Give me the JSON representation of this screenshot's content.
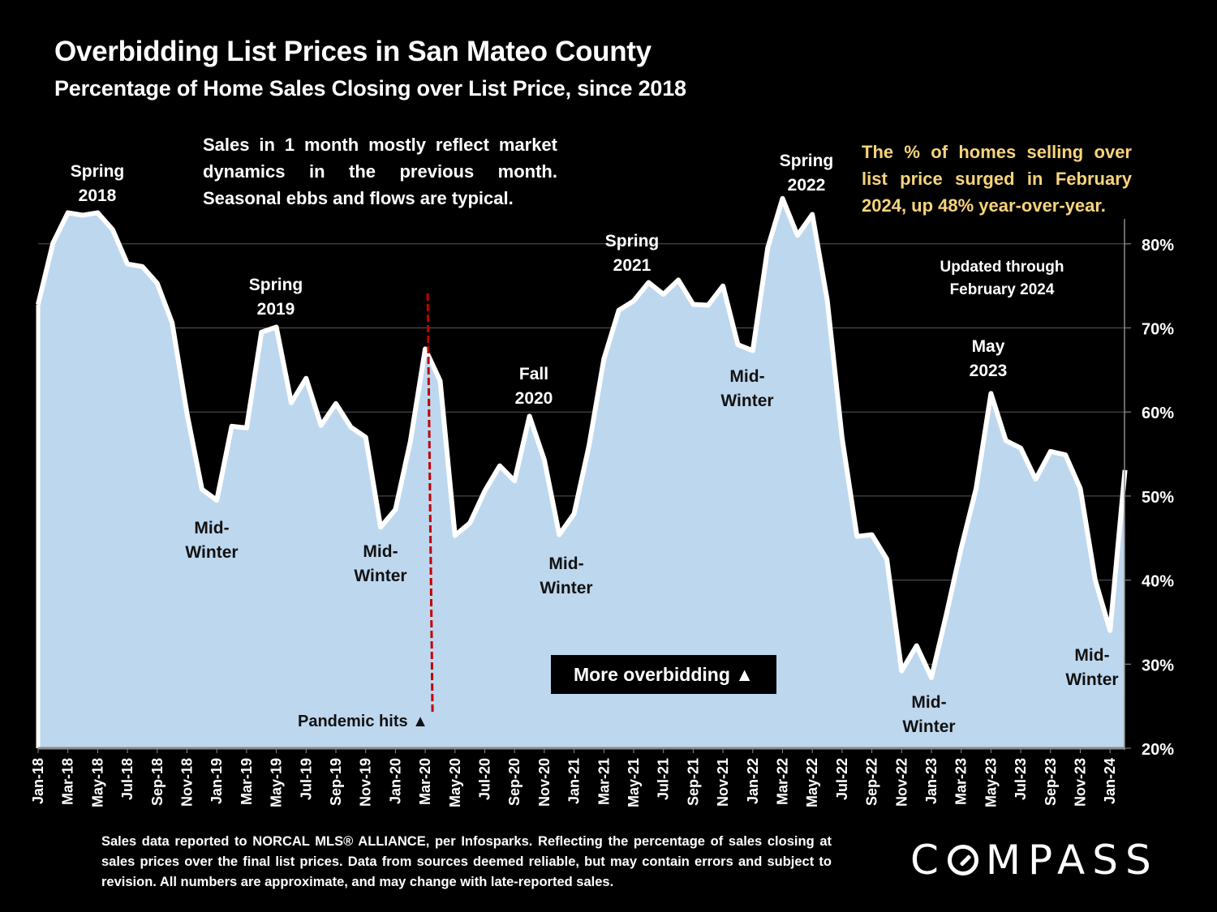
{
  "header": {
    "title": "Overbidding List Prices in San Mateo County",
    "subtitle": "Percentage of Home Sales Closing over List Price, since 2018"
  },
  "notes": {
    "left": "Sales in 1 month mostly reflect market dynamics in the previous month. Seasonal ebbs and flows are typical.",
    "right": "The % of homes selling over list price surged in February 2024, up 48% year-over-year.",
    "updated_line1": "Updated through",
    "updated_line2": "February 2024"
  },
  "annotations": {
    "spring2018": [
      "Spring",
      "2018"
    ],
    "spring2019": [
      "Spring",
      "2019"
    ],
    "fall2020": [
      "Fall",
      "2020"
    ],
    "spring2021": [
      "Spring",
      "2021"
    ],
    "spring2022": [
      "Spring",
      "2022"
    ],
    "may2023": [
      "May",
      "2023"
    ],
    "midwinter1": [
      "Mid-",
      "Winter"
    ],
    "midwinter2": [
      "Mid-",
      "Winter"
    ],
    "midwinter3": [
      "Mid-",
      "Winter"
    ],
    "midwinter4": [
      "Mid-",
      "Winter"
    ],
    "midwinter5": [
      "Mid-",
      "Winter"
    ],
    "midwinter6": [
      "Mid-",
      "Winter"
    ],
    "pandemic": "Pandemic hits ▲",
    "more_overbidding": "More overbidding ▲"
  },
  "footnote": "Sales data reported to NORCAL MLS® ALLIANCE, per Infosparks. Reflecting the percentage of sales closing at sales prices over the final list prices. Data from sources deemed reliable, but may contain errors and subject to revision. All numbers are approximate, and may change with late-reported sales.",
  "logo": {
    "text_before": "C",
    "text_after": "MPASS",
    "icon": "compass-o-icon"
  },
  "colors": {
    "area_fill": "#bdd7ee",
    "line": "#ffffff",
    "gridline": "#595959",
    "pandemic_line": "#c00000",
    "highlight_text": "#f9d47c",
    "background": "#000000"
  },
  "chart_data": {
    "type": "area",
    "title": "Overbidding List Prices in San Mateo County",
    "subtitle": "Percentage of Home Sales Closing over List Price, since 2018",
    "xlabel": "",
    "ylabel": "",
    "y_axis_position": "right",
    "ylim": [
      20,
      82
    ],
    "y_ticks": [
      20,
      30,
      40,
      50,
      60,
      70,
      80
    ],
    "y_tick_labels": [
      "20%",
      "30%",
      "40%",
      "50%",
      "60%",
      "70%",
      "80%"
    ],
    "grid": true,
    "x_tick_labels": [
      "Jan-18",
      "Mar-18",
      "May-18",
      "Jul-18",
      "Sep-18",
      "Nov-18",
      "Jan-19",
      "Mar-19",
      "May-19",
      "Jul-19",
      "Sep-19",
      "Nov-19",
      "Jan-20",
      "Mar-20",
      "May-20",
      "Jul-20",
      "Sep-20",
      "Nov-20",
      "Jan-21",
      "Mar-21",
      "May-21",
      "Jul-21",
      "Sep-21",
      "Nov-21",
      "Jan-22",
      "Mar-22",
      "May-22",
      "Jul-22",
      "Sep-22",
      "Nov-22",
      "Jan-23",
      "Mar-23",
      "May-23",
      "Jul-23",
      "Sep-23",
      "Nov-23",
      "Jan-24"
    ],
    "x": [
      "Jan-18",
      "Feb-18",
      "Mar-18",
      "Apr-18",
      "May-18",
      "Jun-18",
      "Jul-18",
      "Aug-18",
      "Sep-18",
      "Oct-18",
      "Nov-18",
      "Dec-18",
      "Jan-19",
      "Feb-19",
      "Mar-19",
      "Apr-19",
      "May-19",
      "Jun-19",
      "Jul-19",
      "Aug-19",
      "Sep-19",
      "Oct-19",
      "Nov-19",
      "Dec-19",
      "Jan-20",
      "Feb-20",
      "Mar-20",
      "Apr-20",
      "May-20",
      "Jun-20",
      "Jul-20",
      "Aug-20",
      "Sep-20",
      "Oct-20",
      "Nov-20",
      "Dec-20",
      "Jan-21",
      "Feb-21",
      "Mar-21",
      "Apr-21",
      "May-21",
      "Jun-21",
      "Jul-21",
      "Aug-21",
      "Sep-21",
      "Oct-21",
      "Nov-21",
      "Dec-21",
      "Jan-22",
      "Feb-22",
      "Mar-22",
      "Apr-22",
      "May-22",
      "Jun-22",
      "Jul-22",
      "Aug-22",
      "Sep-22",
      "Oct-22",
      "Nov-22",
      "Dec-22",
      "Jan-23",
      "Feb-23",
      "Mar-23",
      "Apr-23",
      "May-23",
      "Jun-23",
      "Jul-23",
      "Aug-23",
      "Sep-23",
      "Oct-23",
      "Nov-23",
      "Dec-23",
      "Jan-24",
      "Feb-24"
    ],
    "series": [
      {
        "name": "% of home sales closing over list price",
        "values": [
          72.8,
          80.1,
          83.7,
          83.4,
          83.7,
          81.7,
          77.6,
          77.3,
          75.3,
          70.6,
          59.8,
          50.8,
          49.5,
          58.3,
          58.1,
          69.5,
          70.1,
          61.1,
          64.0,
          58.4,
          61.0,
          58.2,
          57.0,
          46.3,
          48.4,
          56.5,
          67.5,
          63.7,
          45.3,
          46.8,
          50.6,
          53.6,
          51.8,
          59.5,
          54.3,
          45.4,
          47.9,
          56.0,
          66.3,
          72.1,
          73.2,
          75.4,
          74.0,
          75.7,
          72.8,
          72.7,
          75.0,
          68.0,
          67.3,
          79.5,
          85.4,
          81.0,
          83.5,
          73.3,
          56.9,
          45.2,
          45.4,
          42.5,
          29.2,
          32.2,
          28.4,
          35.9,
          43.8,
          50.9,
          62.2,
          56.6,
          55.7,
          52.0,
          55.3,
          54.9,
          50.9,
          40.0,
          34.0,
          53.1
        ]
      }
    ],
    "event_markers": [
      {
        "x": "Mar-20",
        "label": "Pandemic hits",
        "style": "dashed-red-vertical"
      }
    ]
  }
}
